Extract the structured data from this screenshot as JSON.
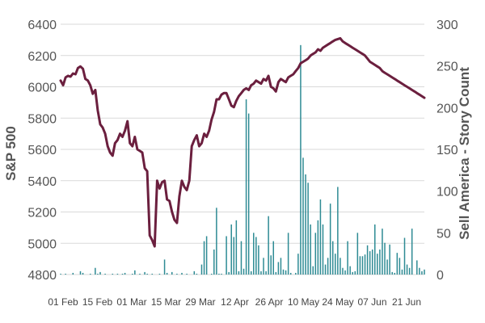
{
  "chart_data": {
    "type": "line",
    "title": "",
    "xlabel": "",
    "ylabel": "S&P 500",
    "y2label": "Sell America - Story Count",
    "ylim": [
      4800,
      6400
    ],
    "y2lim": [
      0,
      300
    ],
    "yticks": [
      4800,
      5000,
      5200,
      5400,
      5600,
      5800,
      6000,
      6200,
      6400
    ],
    "y2ticks": [
      0,
      50,
      100,
      150,
      200,
      250,
      300
    ],
    "xticks": [
      "01 Feb",
      "15 Feb",
      "01 Mar",
      "15 Mar",
      "29 Mar",
      "12 Apr",
      "26 Apr",
      "10 May",
      "24 May",
      "07 Jun",
      "21 Jun"
    ],
    "grid": "horizontal",
    "legend": "none",
    "colors": {
      "line": "#6b1f3e",
      "bars": "#2e8b94",
      "grid": "#d9d9d9",
      "text": "#555555"
    },
    "series": [
      {
        "type": "line",
        "axis": "left",
        "x": [
          0,
          1,
          2,
          3,
          4,
          5,
          6,
          7,
          8,
          9,
          10,
          11,
          12,
          13,
          14,
          15,
          16,
          17,
          18,
          19,
          20,
          21,
          22,
          23,
          24,
          25,
          26,
          27,
          28,
          29,
          30,
          31,
          32,
          33,
          34,
          35,
          36,
          37,
          38,
          39,
          40,
          41,
          42,
          43,
          44,
          45,
          46,
          47,
          48,
          49,
          50,
          51,
          52,
          53,
          54,
          55,
          56,
          57,
          58,
          59,
          60,
          61,
          62,
          63,
          64,
          65,
          66,
          67,
          68,
          69,
          70,
          71,
          72,
          73,
          74,
          75,
          76,
          77,
          78,
          79,
          80,
          81,
          82,
          83,
          84,
          85,
          86,
          87,
          88,
          89,
          90,
          91,
          92,
          93,
          94,
          95,
          96,
          97,
          98,
          99,
          100,
          101,
          102,
          103,
          104,
          105,
          106,
          107,
          108,
          109,
          110,
          111,
          112,
          113,
          114,
          115,
          116,
          117,
          118,
          119,
          120,
          121,
          122,
          123,
          124,
          125,
          126,
          127,
          128,
          129,
          130,
          131,
          132,
          133,
          134,
          135,
          136,
          137,
          138,
          139,
          140,
          141,
          142,
          143,
          144,
          145,
          146,
          147
        ],
        "values": [
          6040,
          6010,
          6060,
          6070,
          6065,
          6085,
          6080,
          6120,
          6130,
          6115,
          6050,
          6040,
          6010,
          5955,
          5980,
          5850,
          5760,
          5740,
          5700,
          5620,
          5580,
          5560,
          5640,
          5660,
          5700,
          5680,
          5720,
          5780,
          5640,
          5620,
          5680,
          5600,
          5590,
          5580,
          5480,
          5460,
          5050,
          5020,
          4980,
          5400,
          5350,
          5390,
          5400,
          5280,
          5270,
          5200,
          5150,
          5130,
          5300,
          5400,
          5360,
          5340,
          5400,
          5620,
          5660,
          5690,
          5620,
          5640,
          5700,
          5680,
          5720,
          5790,
          5840,
          5920,
          5920,
          5950,
          5960,
          5960,
          5920,
          5880,
          5870,
          5910,
          5940,
          5960,
          5980,
          5990,
          5980,
          6010,
          6020,
          6040,
          6030,
          6020,
          6050,
          6040,
          6070,
          6000,
          5990,
          5970,
          6030,
          6050,
          6040,
          6030,
          6060,
          6070,
          6080,
          6100,
          6120,
          6150,
          6160,
          6170,
          6180,
          6200,
          6210,
          6220,
          6240,
          6230,
          6250,
          6260,
          6270,
          6280,
          6290,
          6300,
          6305,
          6310,
          6290,
          6280,
          6270,
          6260,
          6250,
          6240,
          6230,
          6220,
          6210,
          6200,
          6180,
          6160,
          6150,
          6140,
          6130,
          6120,
          6100,
          6090,
          6080,
          6070,
          6060,
          6050,
          6040,
          6030,
          6020,
          6010,
          6000,
          5990,
          5980,
          5970,
          5960,
          5950,
          5940,
          5930
        ]
      },
      {
        "type": "bar",
        "axis": "right",
        "values": [
          1,
          0,
          1,
          0,
          0,
          2,
          0,
          0,
          4,
          2,
          0,
          0,
          1,
          0,
          8,
          1,
          3,
          0,
          1,
          0,
          0,
          1,
          0,
          1,
          0,
          1,
          2,
          0,
          0,
          1,
          5,
          0,
          1,
          0,
          3,
          1,
          0,
          1,
          0,
          0,
          1,
          0,
          18,
          2,
          0,
          3,
          0,
          1,
          0,
          2,
          0,
          1,
          0,
          0,
          4,
          1,
          0,
          12,
          40,
          46,
          0,
          1,
          30,
          80,
          1,
          1,
          0,
          46,
          3,
          60,
          45,
          65,
          4,
          40,
          7,
          210,
          193,
          4,
          50,
          45,
          35,
          4,
          20,
          4,
          70,
          23,
          40,
          3,
          15,
          20,
          6,
          5,
          50,
          2,
          0,
          2,
          25,
          275,
          140,
          120,
          110,
          60,
          10,
          50,
          65,
          90,
          60,
          12,
          20,
          85,
          40,
          25,
          105,
          20,
          8,
          5,
          40,
          10,
          3,
          4,
          50,
          22,
          22,
          24,
          35,
          28,
          30,
          60,
          25,
          30,
          55,
          38,
          18,
          36,
          3,
          2,
          26,
          20,
          6,
          44,
          12,
          8,
          55,
          0,
          17,
          8,
          4,
          6
        ]
      }
    ]
  }
}
